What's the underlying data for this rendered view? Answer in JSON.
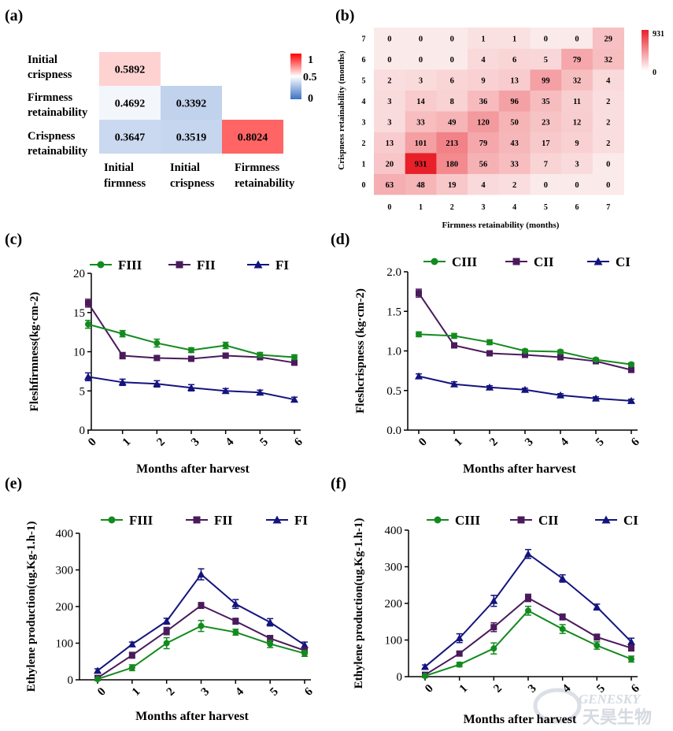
{
  "panels": {
    "a": {
      "label": "(a)",
      "row_labels": [
        [
          "Initial",
          "crispness"
        ],
        [
          "Firmness",
          "retainability"
        ],
        [
          "Crispness",
          "retainability"
        ]
      ],
      "col_labels": [
        [
          "Initial",
          "firmness"
        ],
        [
          "Initial",
          "crispness"
        ],
        [
          "Firmness",
          "retainability"
        ]
      ],
      "colorbar": {
        "max_label": "1",
        "mid_label": "0.5",
        "min_label": "0",
        "colors": {
          "high": "#ff0000",
          "mid": "#ffffff",
          "low": "#3a73c4"
        }
      }
    },
    "b": {
      "label": "(b)",
      "xlabel": "Firmness retainability (months)",
      "ylabel": "Crispness retainability (months)",
      "colorbar": {
        "max_label": "931",
        "min_label": "0",
        "colors": {
          "high": "#e8202a",
          "low": "#ffffff"
        }
      }
    }
  },
  "watermark": {
    "text_en": "GENESKY",
    "text_cn": "天昊生物"
  },
  "chart_data": [
    {
      "id": "a",
      "type": "heatmap",
      "cells": [
        {
          "row": 0,
          "col": 0,
          "value": 0.5892
        },
        {
          "row": 1,
          "col": 0,
          "value": 0.4692
        },
        {
          "row": 1,
          "col": 1,
          "value": 0.3392
        },
        {
          "row": 2,
          "col": 0,
          "value": 0.3647
        },
        {
          "row": 2,
          "col": 1,
          "value": 0.3519
        },
        {
          "row": 2,
          "col": 2,
          "value": 0.8024
        }
      ],
      "vmin": 0,
      "vmax": 1
    },
    {
      "id": "b",
      "type": "heatmap",
      "x": [
        0,
        1,
        2,
        3,
        4,
        5,
        6,
        7
      ],
      "y": [
        0,
        1,
        2,
        3,
        4,
        5,
        6,
        7
      ],
      "matrix": [
        [
          63,
          48,
          19,
          4,
          2,
          0,
          0,
          0
        ],
        [
          20,
          931,
          180,
          56,
          33,
          7,
          3,
          0
        ],
        [
          13,
          101,
          213,
          79,
          43,
          17,
          9,
          2
        ],
        [
          3,
          33,
          49,
          120,
          50,
          23,
          12,
          2
        ],
        [
          3,
          14,
          8,
          36,
          96,
          35,
          11,
          2
        ],
        [
          2,
          3,
          6,
          9,
          13,
          99,
          32,
          4
        ],
        [
          0,
          0,
          0,
          4,
          6,
          5,
          79,
          32
        ],
        [
          0,
          0,
          0,
          1,
          1,
          0,
          0,
          29
        ]
      ],
      "vmin": 0,
      "vmax": 931
    },
    {
      "id": "c",
      "label": "(c)",
      "type": "line",
      "xlabel": "Months after harvest",
      "ylabel": "Fleshfirmness(kg·cm-2)",
      "x": [
        0,
        1,
        2,
        3,
        4,
        5,
        6
      ],
      "xticks": [
        "0",
        "1",
        "2",
        "3",
        "4",
        "5",
        "6"
      ],
      "ylim": [
        0,
        20
      ],
      "yticks": [
        "0",
        "5",
        "10",
        "15",
        "20"
      ],
      "series": [
        {
          "name": "FIII",
          "color": "#138a1e",
          "marker": "circle",
          "values": [
            13.5,
            12.3,
            11.1,
            10.2,
            10.8,
            9.6,
            9.3
          ],
          "err": [
            0.5,
            0.4,
            0.5,
            0.3,
            0.4,
            0.3,
            0.3
          ]
        },
        {
          "name": "FII",
          "color": "#4a1a5c",
          "marker": "square",
          "values": [
            16.2,
            9.5,
            9.2,
            9.1,
            9.5,
            9.3,
            8.6
          ],
          "err": [
            0.5,
            0.4,
            0.3,
            0.3,
            0.3,
            0.3,
            0.3
          ]
        },
        {
          "name": "FI",
          "color": "#14147e",
          "marker": "triangle",
          "values": [
            6.8,
            6.1,
            5.9,
            5.4,
            5.0,
            4.8,
            3.9
          ],
          "err": [
            0.5,
            0.4,
            0.4,
            0.4,
            0.3,
            0.3,
            0.3
          ]
        }
      ]
    },
    {
      "id": "d",
      "label": "(d)",
      "type": "line",
      "xlabel": "Months after harvest",
      "ylabel": "Fleshcrispness (kg·cm-2)",
      "x": [
        0,
        1,
        2,
        3,
        4,
        5,
        6
      ],
      "xticks": [
        "0",
        "1",
        "2",
        "3",
        "4",
        "5",
        "6"
      ],
      "ylim": [
        0,
        2
      ],
      "yticks": [
        "0.0",
        "0.5",
        "1.0",
        "1.5",
        "2.0"
      ],
      "series": [
        {
          "name": "CIII",
          "color": "#138a1e",
          "marker": "circle",
          "values": [
            1.21,
            1.19,
            1.11,
            1.0,
            0.99,
            0.89,
            0.83
          ],
          "err": [
            0.03,
            0.03,
            0.03,
            0.02,
            0.02,
            0.02,
            0.02
          ]
        },
        {
          "name": "CII",
          "color": "#4a1a5c",
          "marker": "square",
          "values": [
            1.73,
            1.07,
            0.97,
            0.95,
            0.92,
            0.87,
            0.76
          ],
          "err": [
            0.05,
            0.03,
            0.02,
            0.02,
            0.02,
            0.02,
            0.03
          ]
        },
        {
          "name": "CI",
          "color": "#14147e",
          "marker": "triangle",
          "values": [
            0.68,
            0.58,
            0.54,
            0.51,
            0.44,
            0.4,
            0.37
          ],
          "err": [
            0.03,
            0.03,
            0.02,
            0.02,
            0.02,
            0.02,
            0.02
          ]
        }
      ]
    },
    {
      "id": "e",
      "label": "(e)",
      "type": "line",
      "xlabel": "Months after harvest",
      "ylabel": "Ethylene production(ug.Kg-1.h-1)",
      "x": [
        0,
        1,
        2,
        3,
        4,
        5,
        6
      ],
      "xticks": [
        "0",
        "1",
        "2",
        "3",
        "4",
        "5",
        "6"
      ],
      "ylim": [
        0,
        400
      ],
      "yticks": [
        "0",
        "100",
        "200",
        "300",
        "400"
      ],
      "series": [
        {
          "name": "FIII",
          "color": "#138a1e",
          "marker": "circle",
          "values": [
            2,
            33,
            100,
            147,
            130,
            98,
            72
          ],
          "err": [
            3,
            8,
            15,
            15,
            8,
            10,
            8
          ]
        },
        {
          "name": "FII",
          "color": "#4a1a5c",
          "marker": "square",
          "values": [
            5,
            67,
            133,
            203,
            160,
            113,
            80
          ],
          "err": [
            3,
            8,
            10,
            8,
            8,
            8,
            8
          ]
        },
        {
          "name": "FI",
          "color": "#14147e",
          "marker": "triangle",
          "values": [
            25,
            97,
            160,
            288,
            207,
            157,
            95
          ],
          "err": [
            5,
            6,
            8,
            15,
            12,
            10,
            8
          ]
        }
      ]
    },
    {
      "id": "f",
      "label": "(f)",
      "type": "line",
      "xlabel": "Months after harvest",
      "ylabel": "Ethylene production(ug.Kg-1.h-1)",
      "x": [
        0,
        1,
        2,
        3,
        4,
        5,
        6
      ],
      "xticks": [
        "0",
        "1",
        "2",
        "3",
        "4",
        "5",
        "6"
      ],
      "ylim": [
        0,
        400
      ],
      "yticks": [
        "0",
        "100",
        "200",
        "300",
        "400"
      ],
      "series": [
        {
          "name": "CIII",
          "color": "#138a1e",
          "marker": "circle",
          "values": [
            2,
            33,
            77,
            180,
            130,
            85,
            48
          ],
          "err": [
            3,
            6,
            15,
            12,
            12,
            10,
            8
          ]
        },
        {
          "name": "CII",
          "color": "#4a1a5c",
          "marker": "square",
          "values": [
            5,
            63,
            135,
            215,
            163,
            108,
            78
          ],
          "err": [
            3,
            6,
            12,
            10,
            8,
            8,
            8
          ]
        },
        {
          "name": "CI",
          "color": "#14147e",
          "marker": "triangle",
          "values": [
            27,
            105,
            207,
            335,
            268,
            190,
            95
          ],
          "err": [
            5,
            12,
            15,
            12,
            10,
            8,
            10
          ]
        }
      ]
    }
  ]
}
